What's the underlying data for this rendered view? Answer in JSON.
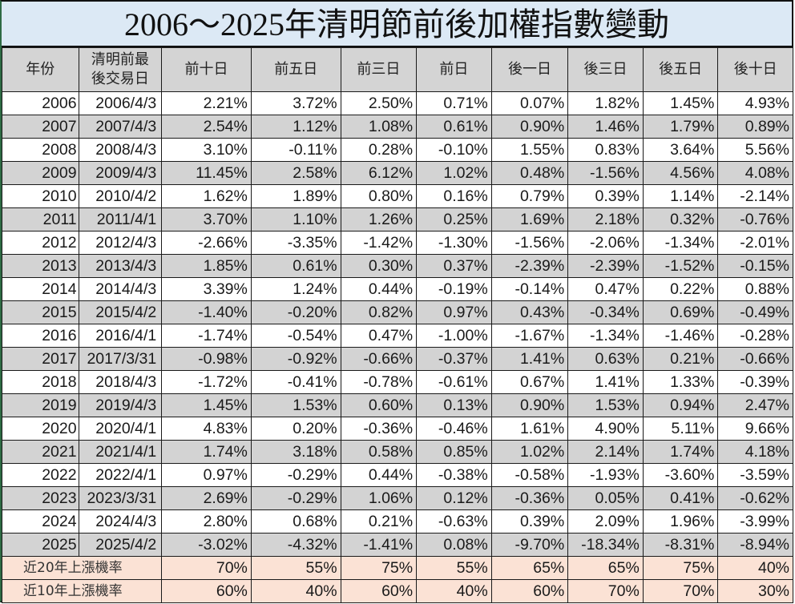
{
  "title": "2006～2025年清明節前後加權指數變動",
  "colors": {
    "title_bg": "#dce9f5",
    "header_bg": "#d4d4d4",
    "alt_row_bg": "#d3d3d3",
    "summary_bg": "#fbe2d5",
    "border": "#1a1a1a"
  },
  "table": {
    "headers": {
      "year": "年份",
      "date_line1": "清明前最",
      "date_line2": "後交易日",
      "d_minus10": "前十日",
      "d_minus5": "前五日",
      "d_minus3": "前三日",
      "d_minus1": "前日",
      "d_plus1": "後一日",
      "d_plus3": "後三日",
      "d_plus5": "後五日",
      "d_plus10": "後十日"
    },
    "rows": [
      {
        "year": "2006",
        "date": "2006/4/3",
        "v": [
          "2.21%",
          "3.72%",
          "2.50%",
          "0.71%",
          "0.07%",
          "1.82%",
          "1.45%",
          "4.93%"
        ]
      },
      {
        "year": "2007",
        "date": "2007/4/3",
        "v": [
          "2.54%",
          "1.12%",
          "1.08%",
          "0.61%",
          "0.90%",
          "1.46%",
          "1.79%",
          "0.89%"
        ]
      },
      {
        "year": "2008",
        "date": "2008/4/3",
        "v": [
          "3.10%",
          "-0.11%",
          "0.28%",
          "-0.10%",
          "1.55%",
          "0.83%",
          "3.64%",
          "5.56%"
        ]
      },
      {
        "year": "2009",
        "date": "2009/4/3",
        "v": [
          "11.45%",
          "2.58%",
          "6.12%",
          "1.02%",
          "0.48%",
          "-1.56%",
          "4.56%",
          "4.08%"
        ]
      },
      {
        "year": "2010",
        "date": "2010/4/2",
        "v": [
          "1.62%",
          "1.89%",
          "0.80%",
          "0.16%",
          "0.79%",
          "0.39%",
          "1.14%",
          "-2.14%"
        ]
      },
      {
        "year": "2011",
        "date": "2011/4/1",
        "v": [
          "3.70%",
          "1.10%",
          "1.26%",
          "0.25%",
          "1.69%",
          "2.18%",
          "0.32%",
          "-0.76%"
        ]
      },
      {
        "year": "2012",
        "date": "2012/4/3",
        "v": [
          "-2.66%",
          "-3.35%",
          "-1.42%",
          "-1.30%",
          "-1.56%",
          "-2.06%",
          "-1.34%",
          "-2.01%"
        ]
      },
      {
        "year": "2013",
        "date": "2013/4/3",
        "v": [
          "1.85%",
          "0.61%",
          "0.30%",
          "0.37%",
          "-2.39%",
          "-2.39%",
          "-1.52%",
          "-0.15%"
        ]
      },
      {
        "year": "2014",
        "date": "2014/4/3",
        "v": [
          "3.39%",
          "1.24%",
          "0.44%",
          "-0.19%",
          "-0.14%",
          "0.47%",
          "0.22%",
          "0.88%"
        ]
      },
      {
        "year": "2015",
        "date": "2015/4/2",
        "v": [
          "-1.40%",
          "-0.20%",
          "0.82%",
          "0.97%",
          "0.43%",
          "-0.34%",
          "0.69%",
          "-0.49%"
        ]
      },
      {
        "year": "2016",
        "date": "2016/4/1",
        "v": [
          "-1.74%",
          "-0.54%",
          "0.47%",
          "-1.00%",
          "-1.67%",
          "-1.34%",
          "-1.46%",
          "-0.28%"
        ]
      },
      {
        "year": "2017",
        "date": "2017/3/31",
        "v": [
          "-0.98%",
          "-0.92%",
          "-0.66%",
          "-0.37%",
          "1.41%",
          "0.63%",
          "0.21%",
          "-0.66%"
        ]
      },
      {
        "year": "2018",
        "date": "2018/4/3",
        "v": [
          "-1.72%",
          "-0.41%",
          "-0.78%",
          "-0.61%",
          "0.67%",
          "1.41%",
          "1.33%",
          "-0.39%"
        ]
      },
      {
        "year": "2019",
        "date": "2019/4/3",
        "v": [
          "1.45%",
          "1.53%",
          "0.60%",
          "0.13%",
          "0.90%",
          "1.53%",
          "0.94%",
          "2.47%"
        ]
      },
      {
        "year": "2020",
        "date": "2020/4/1",
        "v": [
          "4.83%",
          "0.20%",
          "-0.36%",
          "-0.46%",
          "1.61%",
          "4.90%",
          "5.11%",
          "9.66%"
        ]
      },
      {
        "year": "2021",
        "date": "2021/4/1",
        "v": [
          "1.74%",
          "3.18%",
          "0.58%",
          "0.85%",
          "1.02%",
          "2.14%",
          "1.74%",
          "4.18%"
        ]
      },
      {
        "year": "2022",
        "date": "2022/4/1",
        "v": [
          "0.97%",
          "-0.29%",
          "0.44%",
          "-0.38%",
          "-0.58%",
          "-1.93%",
          "-3.60%",
          "-3.59%"
        ]
      },
      {
        "year": "2023",
        "date": "2023/3/31",
        "v": [
          "2.69%",
          "-0.29%",
          "1.06%",
          "0.12%",
          "-0.36%",
          "0.05%",
          "0.41%",
          "-0.62%"
        ]
      },
      {
        "year": "2024",
        "date": "2024/4/3",
        "v": [
          "2.80%",
          "0.68%",
          "0.21%",
          "-0.63%",
          "0.39%",
          "2.09%",
          "1.96%",
          "-3.99%"
        ]
      },
      {
        "year": "2025",
        "date": "2025/4/2",
        "v": [
          "-3.02%",
          "-4.32%",
          "-1.41%",
          "0.08%",
          "-9.70%",
          "-18.34%",
          "-8.31%",
          "-8.94%"
        ]
      }
    ],
    "summary": [
      {
        "label": "近20年上漲機率",
        "v": [
          "70%",
          "55%",
          "75%",
          "55%",
          "65%",
          "65%",
          "75%",
          "40%"
        ]
      },
      {
        "label": "近10年上漲機率",
        "v": [
          "60%",
          "40%",
          "60%",
          "40%",
          "60%",
          "70%",
          "70%",
          "30%"
        ]
      }
    ]
  }
}
